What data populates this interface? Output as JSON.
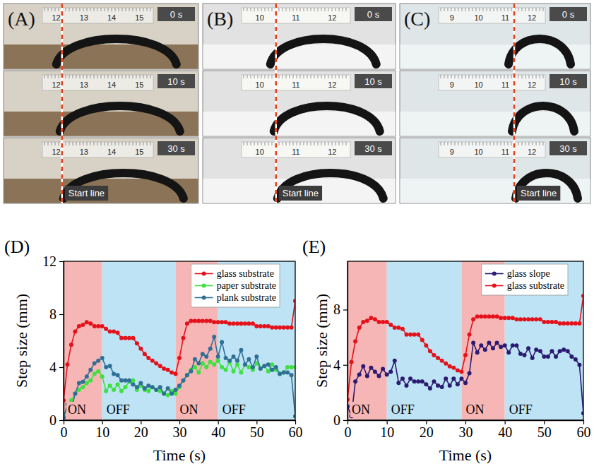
{
  "photos": [
    {
      "label": "(A)",
      "times": [
        "0 s",
        "10 s",
        "30 s"
      ],
      "start_line": "Start line",
      "ruler": [
        "12",
        "13",
        "14",
        "15"
      ]
    },
    {
      "label": "(B)",
      "times": [
        "0 s",
        "10 s",
        "30 s"
      ],
      "start_line": "Start line",
      "ruler": [
        "10",
        "11",
        "12"
      ]
    },
    {
      "label": "(C)",
      "times": [
        "0 s",
        "10 s",
        "30 s"
      ],
      "start_line": "Start line",
      "ruler": [
        "9",
        "10",
        "11",
        "12"
      ]
    }
  ],
  "chart_data": [
    {
      "type": "line",
      "panel_label": "(D)",
      "x_label": "Time (s)",
      "y_label": "Step size (mm)",
      "xlim": [
        0,
        60
      ],
      "xticks": [
        0,
        10,
        20,
        30,
        40,
        50,
        60
      ],
      "ylim": [
        0,
        12
      ],
      "yticks": [
        0,
        4,
        8,
        12
      ],
      "grid": false,
      "legend": "upper right",
      "marker": "circle",
      "line_style": "solid",
      "bands": [
        {
          "from": 0,
          "to": 10,
          "label": "ON",
          "color": "#f7b6b6"
        },
        {
          "from": 10,
          "to": 29,
          "label": "OFF",
          "color": "#bde3f4"
        },
        {
          "from": 29,
          "to": 40,
          "label": "ON",
          "color": "#f7b6b6"
        },
        {
          "from": 40,
          "to": 60,
          "label": "OFF",
          "color": "#bde3f4"
        }
      ],
      "x": [
        0,
        1,
        2,
        3,
        4,
        5,
        6,
        7,
        8,
        9,
        10,
        11,
        12,
        13,
        14,
        15,
        16,
        17,
        18,
        19,
        20,
        21,
        22,
        23,
        24,
        25,
        26,
        27,
        28,
        29,
        30,
        31,
        32,
        33,
        34,
        35,
        36,
        37,
        38,
        39,
        40,
        41,
        42,
        43,
        44,
        45,
        46,
        47,
        48,
        49,
        50,
        51,
        52,
        53,
        54,
        55,
        56,
        57,
        58,
        59,
        60
      ],
      "series": [
        {
          "name": "glass substrate",
          "color": "#e3121b",
          "values": [
            1.5,
            4.2,
            5.7,
            6.7,
            7.1,
            7.2,
            7.4,
            7.3,
            7.1,
            7.1,
            7.1,
            6.9,
            6.7,
            6.7,
            6.6,
            6.2,
            6.2,
            6.2,
            6.2,
            5.8,
            5.4,
            5.0,
            4.7,
            4.5,
            4.3,
            4.1,
            3.9,
            3.8,
            3.6,
            3.5,
            4.7,
            6.2,
            7.3,
            7.5,
            7.5,
            7.5,
            7.5,
            7.5,
            7.5,
            7.4,
            7.4,
            7.4,
            7.4,
            7.3,
            7.3,
            7.3,
            7.3,
            7.3,
            7.3,
            7.3,
            7.1,
            7.1,
            7.1,
            7.1,
            7.0,
            7.0,
            7.0,
            7.0,
            7.0,
            7.0,
            9.0
          ]
        },
        {
          "name": "paper substrate",
          "color": "#3fe03f",
          "values": [
            0.3,
            0.8,
            1.5,
            2.0,
            2.3,
            2.5,
            2.8,
            3.0,
            3.5,
            3.7,
            3.3,
            2.2,
            2.6,
            2.3,
            2.7,
            2.2,
            2.5,
            2.9,
            3.0,
            2.3,
            2.6,
            2.3,
            2.2,
            2.5,
            2.3,
            2.2,
            2.0,
            1.9,
            2.2,
            2.0,
            2.5,
            3.0,
            3.4,
            3.8,
            4.0,
            3.6,
            4.3,
            4.0,
            4.4,
            4.2,
            4.5,
            4.0,
            3.8,
            4.4,
            3.7,
            4.2,
            3.6,
            4.2,
            4.0,
            3.8,
            4.3,
            3.9,
            4.1,
            3.7,
            4.2,
            3.8,
            3.5,
            3.6,
            4.0,
            4.0,
            4.0
          ]
        },
        {
          "name": "plank substrate",
          "color": "#2f6f96",
          "values": [
            0.2,
            1.2,
            0.8,
            2.0,
            2.8,
            2.9,
            3.3,
            3.8,
            4.3,
            4.5,
            4.7,
            4.0,
            4.1,
            3.5,
            3.4,
            3.0,
            3.0,
            3.0,
            2.7,
            2.5,
            2.8,
            2.4,
            2.6,
            2.5,
            2.3,
            2.5,
            2.0,
            2.4,
            2.0,
            2.3,
            2.6,
            3.0,
            3.4,
            3.7,
            4.6,
            4.3,
            5.0,
            4.8,
            5.4,
            6.3,
            4.8,
            5.9,
            4.7,
            4.5,
            4.8,
            4.5,
            5.3,
            4.2,
            4.6,
            4.0,
            4.8,
            3.9,
            4.1,
            4.2,
            3.8,
            4.0,
            3.5,
            3.6,
            3.6,
            3.4,
            0.3
          ]
        }
      ]
    },
    {
      "type": "line",
      "panel_label": "(E)",
      "x_label": "Time (s)",
      "y_label": "Step size (mm)",
      "xlim": [
        0,
        60
      ],
      "xticks": [
        0,
        10,
        20,
        30,
        40,
        50,
        60
      ],
      "ylim": [
        0,
        11.5
      ],
      "yticks": [
        0,
        4,
        8
      ],
      "grid": false,
      "legend": "upper right",
      "marker": "circle",
      "line_style": "solid",
      "bands": [
        {
          "from": 0,
          "to": 10,
          "label": "ON",
          "color": "#f7b6b6"
        },
        {
          "from": 10,
          "to": 29,
          "label": "OFF",
          "color": "#bde3f4"
        },
        {
          "from": 29,
          "to": 40,
          "label": "ON",
          "color": "#f7b6b6"
        },
        {
          "from": 40,
          "to": 60,
          "label": "OFF",
          "color": "#bde3f4"
        }
      ],
      "x": [
        0,
        1,
        2,
        3,
        4,
        5,
        6,
        7,
        8,
        9,
        10,
        11,
        12,
        13,
        14,
        15,
        16,
        17,
        18,
        19,
        20,
        21,
        22,
        23,
        24,
        25,
        26,
        27,
        28,
        29,
        30,
        31,
        32,
        33,
        34,
        35,
        36,
        37,
        38,
        39,
        40,
        41,
        42,
        43,
        44,
        45,
        46,
        47,
        48,
        49,
        50,
        51,
        52,
        53,
        54,
        55,
        56,
        57,
        58,
        59,
        60
      ],
      "series": [
        {
          "name": "glass slope",
          "color": "#2b1a72",
          "values": [
            1.0,
            0.3,
            2.8,
            3.3,
            3.9,
            3.2,
            3.8,
            3.5,
            3.2,
            3.7,
            3.3,
            3.5,
            4.3,
            2.7,
            3.0,
            2.5,
            3.0,
            2.8,
            2.8,
            2.8,
            2.6,
            2.3,
            2.8,
            2.5,
            2.4,
            3.0,
            2.5,
            3.0,
            2.6,
            3.0,
            2.7,
            3.4,
            5.6,
            4.9,
            5.4,
            5.1,
            5.6,
            5.2,
            5.6,
            5.3,
            5.4,
            4.9,
            5.4,
            5.4,
            4.8,
            4.7,
            5.2,
            4.5,
            5.1,
            5.0,
            4.6,
            4.6,
            5.0,
            4.6,
            5.0,
            5.1,
            5.0,
            4.6,
            4.4,
            4.0,
            0.5
          ]
        },
        {
          "name": "glass substrate",
          "color": "#e3121b",
          "values": [
            1.5,
            4.2,
            5.7,
            6.7,
            7.1,
            7.2,
            7.4,
            7.3,
            7.1,
            7.1,
            7.1,
            6.9,
            6.7,
            6.7,
            6.6,
            6.2,
            6.2,
            6.2,
            6.2,
            5.8,
            5.4,
            5.0,
            4.7,
            4.5,
            4.3,
            4.1,
            3.9,
            3.8,
            3.6,
            3.5,
            4.7,
            6.2,
            7.3,
            7.5,
            7.5,
            7.5,
            7.5,
            7.5,
            7.5,
            7.4,
            7.4,
            7.4,
            7.4,
            7.3,
            7.3,
            7.3,
            7.3,
            7.3,
            7.3,
            7.3,
            7.1,
            7.1,
            7.1,
            7.1,
            7.0,
            7.0,
            7.0,
            7.0,
            7.0,
            7.0,
            9.0
          ]
        }
      ]
    }
  ]
}
